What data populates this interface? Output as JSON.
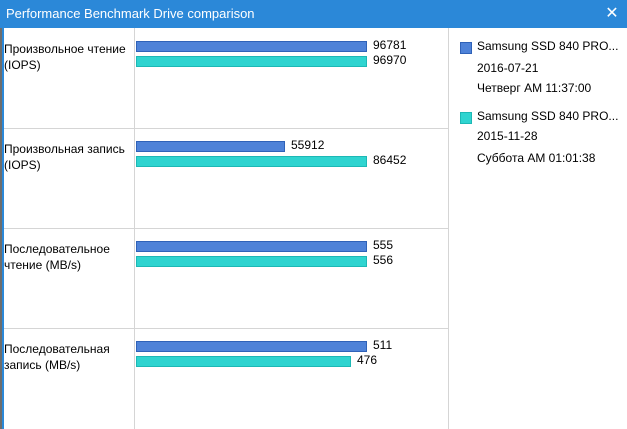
{
  "window": {
    "title": "Performance Benchmark Drive comparison",
    "close_glyph": "✕"
  },
  "colors": {
    "series_a": "#4e82d8",
    "series_b": "#2fd4d0",
    "titlebar": "#2b88d8"
  },
  "chart_data": {
    "type": "bar",
    "orientation": "horizontal",
    "categories": [
      "Произвольное чтение (IOPS)",
      "Произвольная запись (IOPS)",
      "Последовательное чтение (MB/s)",
      "Последовательная запись (MB/s)"
    ],
    "series": [
      {
        "name": "Samsung SSD 840 PRO...",
        "values": [
          96781,
          55912,
          555,
          511
        ]
      },
      {
        "name": "Samsung SSD 840 PRO...",
        "values": [
          96970,
          86452,
          556,
          476
        ]
      }
    ],
    "value_labels": [
      [
        "96781",
        "96970"
      ],
      [
        "55912",
        "86452"
      ],
      [
        "555",
        "556"
      ],
      [
        "511",
        "476"
      ]
    ],
    "grid": true,
    "legend": "right"
  },
  "legend": [
    {
      "name": "Samsung SSD 840 PRO...",
      "date": "2016-07-21",
      "time": "Четверг AM 11:37:00"
    },
    {
      "name": "Samsung SSD 840 PRO...",
      "date": "2015-11-28",
      "time": "Суббота AM 01:01:38"
    }
  ]
}
